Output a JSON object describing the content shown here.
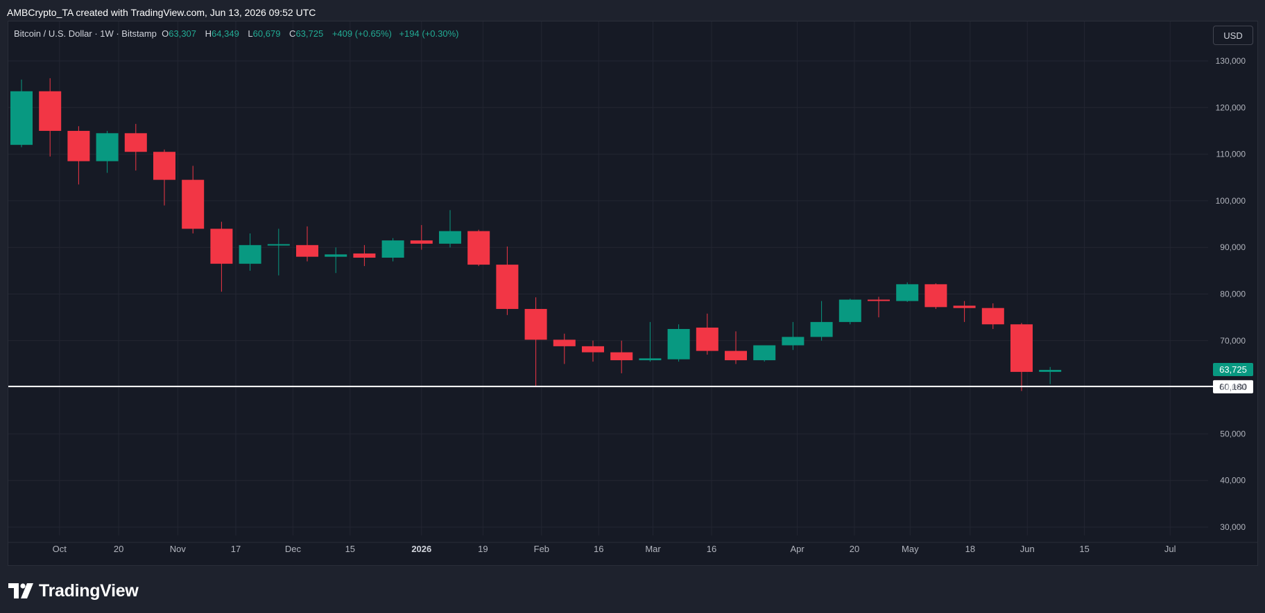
{
  "header": {
    "attribution": "AMBCrypto_TA created with TradingView.com, Jun 13, 2026 09:52 UTC"
  },
  "legend": {
    "symbol": "Bitcoin / U.S. Dollar · 1W · Bitstamp",
    "open_label": "O",
    "open": "63,307",
    "high_label": "H",
    "high": "64,349",
    "low_label": "L",
    "low": "60,679",
    "close_label": "C",
    "close": "63,725",
    "change": "+409 (+0.65%)",
    "change2": "+194 (+0.30%)"
  },
  "currency": "USD",
  "footer": {
    "brand": "TradingView"
  },
  "colors": {
    "up": "#089981",
    "down": "#f23645",
    "bg": "#161a25",
    "grid": "#232632",
    "text": "#b2b5be",
    "line": "#ffffff"
  },
  "chart_data": {
    "type": "candlestick",
    "ylim": [
      25000,
      137000
    ],
    "y_ticks": [
      30000,
      40000,
      50000,
      60000,
      70000,
      80000,
      90000,
      100000,
      110000,
      120000,
      130000
    ],
    "y_tick_labels": [
      "30,000",
      "40,000",
      "50,000",
      "60,000",
      "70,000",
      "80,000",
      "90,000",
      "100,000",
      "110,000",
      "120,000",
      "130,000"
    ],
    "x_tick_labels": [
      {
        "label": "Oct",
        "slot": 1.33
      },
      {
        "label": "20",
        "slot": 3.4
      },
      {
        "label": "Nov",
        "slot": 5.47
      },
      {
        "label": "17",
        "slot": 7.5
      },
      {
        "label": "Dec",
        "slot": 9.5
      },
      {
        "label": "15",
        "slot": 11.5
      },
      {
        "label": "2026",
        "slot": 14.0,
        "bold": true
      },
      {
        "label": "19",
        "slot": 16.15
      },
      {
        "label": "Feb",
        "slot": 18.2
      },
      {
        "label": "16",
        "slot": 20.2
      },
      {
        "label": "Mar",
        "slot": 22.1
      },
      {
        "label": "16",
        "slot": 24.15
      },
      {
        "label": "Apr",
        "slot": 27.15
      },
      {
        "label": "20",
        "slot": 29.15
      },
      {
        "label": "May",
        "slot": 31.1
      },
      {
        "label": "18",
        "slot": 33.2
      },
      {
        "label": "Jun",
        "slot": 35.2
      },
      {
        "label": "15",
        "slot": 37.2
      },
      {
        "label": "Jul",
        "slot": 40.2
      }
    ],
    "candles": [
      {
        "o": 112000,
        "h": 126000,
        "l": 111500,
        "c": 123500
      },
      {
        "o": 123500,
        "h": 126300,
        "l": 109500,
        "c": 115000
      },
      {
        "o": 115000,
        "h": 116000,
        "l": 103500,
        "c": 108500
      },
      {
        "o": 108500,
        "h": 115000,
        "l": 106000,
        "c": 114500
      },
      {
        "o": 114500,
        "h": 116500,
        "l": 106500,
        "c": 110500
      },
      {
        "o": 110500,
        "h": 111000,
        "l": 99000,
        "c": 104500
      },
      {
        "o": 104500,
        "h": 107500,
        "l": 93000,
        "c": 94000
      },
      {
        "o": 94000,
        "h": 95500,
        "l": 80500,
        "c": 86500
      },
      {
        "o": 86500,
        "h": 93000,
        "l": 85000,
        "c": 90500
      },
      {
        "o": 90500,
        "h": 94000,
        "l": 84000,
        "c": 90700
      },
      {
        "o": 90500,
        "h": 94500,
        "l": 87000,
        "c": 88000
      },
      {
        "o": 88000,
        "h": 90000,
        "l": 84500,
        "c": 88500
      },
      {
        "o": 88700,
        "h": 90500,
        "l": 86000,
        "c": 87800
      },
      {
        "o": 87800,
        "h": 92000,
        "l": 87000,
        "c": 91500
      },
      {
        "o": 91500,
        "h": 94800,
        "l": 89500,
        "c": 90800
      },
      {
        "o": 90800,
        "h": 98000,
        "l": 90000,
        "c": 93500
      },
      {
        "o": 93500,
        "h": 93800,
        "l": 86000,
        "c": 86300
      },
      {
        "o": 86300,
        "h": 90200,
        "l": 75500,
        "c": 76800
      },
      {
        "o": 76800,
        "h": 79300,
        "l": 60200,
        "c": 70200
      },
      {
        "o": 70200,
        "h": 71500,
        "l": 65000,
        "c": 68800
      },
      {
        "o": 68800,
        "h": 70000,
        "l": 65500,
        "c": 67500
      },
      {
        "o": 67500,
        "h": 70000,
        "l": 63000,
        "c": 65800
      },
      {
        "o": 65800,
        "h": 74000,
        "l": 65500,
        "c": 66200
      },
      {
        "o": 66000,
        "h": 73500,
        "l": 65500,
        "c": 72500
      },
      {
        "o": 72800,
        "h": 75800,
        "l": 67000,
        "c": 67800
      },
      {
        "o": 67800,
        "h": 72000,
        "l": 65000,
        "c": 65800
      },
      {
        "o": 65800,
        "h": 69000,
        "l": 65500,
        "c": 69000
      },
      {
        "o": 69000,
        "h": 74000,
        "l": 68000,
        "c": 70800
      },
      {
        "o": 70800,
        "h": 78500,
        "l": 70000,
        "c": 74000
      },
      {
        "o": 74000,
        "h": 79000,
        "l": 73500,
        "c": 78800
      },
      {
        "o": 78800,
        "h": 79400,
        "l": 75000,
        "c": 78600
      },
      {
        "o": 78500,
        "h": 82500,
        "l": 78300,
        "c": 82100
      },
      {
        "o": 82100,
        "h": 82300,
        "l": 76800,
        "c": 77200
      },
      {
        "o": 77500,
        "h": 78500,
        "l": 74000,
        "c": 77000
      },
      {
        "o": 77000,
        "h": 78000,
        "l": 72500,
        "c": 73500
      },
      {
        "o": 73500,
        "h": 73800,
        "l": 59200,
        "c": 63300
      },
      {
        "o": 63307,
        "h": 64349,
        "l": 60679,
        "c": 63725
      }
    ],
    "price_line": {
      "value": 60180,
      "label": "60,180"
    },
    "last_price": {
      "value": 63725,
      "label": "63,725"
    },
    "grid": true
  }
}
